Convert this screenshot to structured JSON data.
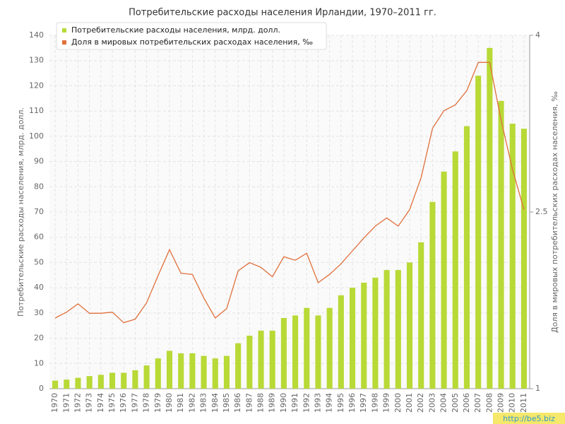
{
  "chart_data": {
    "type": "bar_line",
    "title": "Потребительские расходы населения Ирландии, 1970–2011 гг.",
    "y_label": "Потребительские расходы населения, млрд. долл.",
    "y2_label": "Доля в мировых потребительских расходах населения, ‰",
    "watermark": "http://be5.biz",
    "categories": [
      "1970",
      "1971",
      "1972",
      "1973",
      "1974",
      "1975",
      "1976",
      "1977",
      "1978",
      "1979",
      "1980",
      "1981",
      "1982",
      "1983",
      "1984",
      "1985",
      "1986",
      "1987",
      "1988",
      "1989",
      "1990",
      "1991",
      "1992",
      "1993",
      "1994",
      "1995",
      "1996",
      "1997",
      "1998",
      "1999",
      "2000",
      "2001",
      "2002",
      "2003",
      "2004",
      "2005",
      "2006",
      "2007",
      "2008",
      "2009",
      "2010",
      "2011"
    ],
    "series": [
      {
        "name": "Потребительские расходы населения, млрд. долл.",
        "color": "#b8d936",
        "type": "bar",
        "values": [
          3.2,
          3.6,
          4.3,
          5,
          5.5,
          6.3,
          6.3,
          7.3,
          9.2,
          12,
          15,
          14,
          14,
          13,
          12,
          13,
          18,
          21,
          23,
          23,
          28,
          29,
          32,
          29,
          32,
          37,
          40,
          42,
          44,
          47,
          47,
          50,
          58,
          74,
          86,
          94,
          104,
          124,
          135,
          114,
          105,
          103
        ]
      },
      {
        "name": "Доля в мировых потребительских расходах населения, ‰",
        "color": "#e0703c",
        "type": "line",
        "axis": "y2",
        "values": [
          1.6,
          1.65,
          1.72,
          1.64,
          1.64,
          1.65,
          1.56,
          1.59,
          1.73,
          1.96,
          2.18,
          1.98,
          1.97,
          1.77,
          1.6,
          1.68,
          2.0,
          2.07,
          2.03,
          1.95,
          2.12,
          2.09,
          2.15,
          1.9,
          1.97,
          2.06,
          2.17,
          2.28,
          2.38,
          2.45,
          2.38,
          2.52,
          2.79,
          3.21,
          3.36,
          3.41,
          3.53,
          3.77,
          3.77,
          3.28,
          2.86,
          2.52
        ]
      }
    ],
    "ylim": [
      0,
      140
    ],
    "yticks": [
      0,
      10,
      20,
      30,
      40,
      50,
      60,
      70,
      80,
      90,
      100,
      110,
      120,
      130,
      140
    ],
    "y2lim": [
      1,
      4
    ],
    "y2ticks": [
      1,
      2.5,
      4
    ],
    "grid": true,
    "legend": "top-left"
  }
}
